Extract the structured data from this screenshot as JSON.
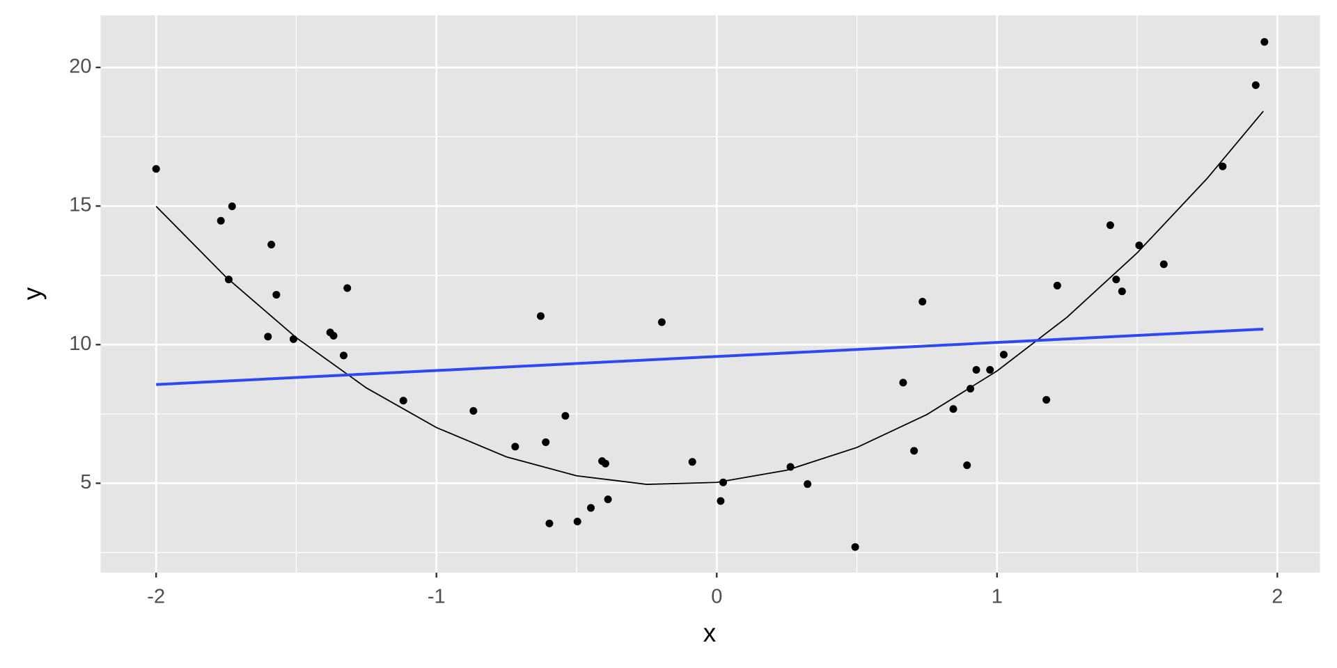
{
  "chart_data": {
    "type": "scatter",
    "xlabel": "x",
    "ylabel": "y",
    "xlim": [
      -2.198,
      2.152
    ],
    "ylim": [
      1.774,
      21.88
    ],
    "xticks": [
      -2,
      -1,
      0,
      1,
      2
    ],
    "yticks": [
      5,
      10,
      15,
      20
    ],
    "xminor": [
      -1.5,
      -0.5,
      0.5,
      1.5
    ],
    "yminor": [
      2.5,
      7.5,
      12.5,
      17.5
    ],
    "grid": true,
    "panel_color": "#e5e5e5",
    "series": [
      {
        "style": "points",
        "color": "#000000",
        "x": [
          -2.0,
          -1.769,
          -1.729,
          -1.741,
          -1.589,
          -1.571,
          -1.601,
          -1.51,
          -1.379,
          -1.367,
          -1.318,
          -1.331,
          -1.118,
          -0.868,
          -0.719,
          -0.628,
          -0.61,
          -0.597,
          -0.54,
          -0.497,
          -0.449,
          -0.409,
          -0.397,
          -0.388,
          -0.196,
          -0.087,
          0.014,
          0.023,
          0.263,
          0.324,
          0.494,
          0.665,
          0.704,
          0.734,
          0.844,
          0.893,
          0.905,
          0.926,
          0.975,
          1.024,
          1.176,
          1.215,
          1.404,
          1.425,
          1.446,
          1.507,
          1.595,
          1.805,
          1.923,
          1.954
        ],
        "y": [
          16.34,
          14.47,
          14.99,
          12.35,
          13.61,
          11.8,
          10.29,
          10.2,
          10.44,
          10.32,
          12.04,
          9.61,
          7.98,
          7.61,
          6.32,
          11.03,
          6.48,
          3.55,
          7.43,
          3.62,
          4.11,
          5.8,
          5.71,
          4.42,
          10.81,
          5.77,
          4.36,
          5.03,
          5.59,
          4.97,
          2.7,
          8.63,
          6.17,
          11.55,
          7.68,
          5.65,
          8.41,
          9.09,
          9.09,
          9.64,
          8.01,
          12.13,
          14.31,
          12.35,
          11.92,
          13.58,
          12.9,
          16.43,
          19.36,
          20.92
        ]
      },
      {
        "style": "line",
        "color": "#000000",
        "width": 1.8,
        "x": [
          -2,
          -1.75,
          -1.5,
          -1.25,
          -1,
          -0.75,
          -0.5,
          -0.25,
          0,
          0.25,
          0.5,
          0.75,
          1,
          1.25,
          1.5,
          1.75,
          1.95
        ],
        "y": [
          14.99,
          12.43,
          10.25,
          8.44,
          7.01,
          5.95,
          5.27,
          4.96,
          5.03,
          5.47,
          6.29,
          7.48,
          9.05,
          10.99,
          13.31,
          16.0,
          18.42
        ]
      },
      {
        "style": "line",
        "color": "#3048f0",
        "width": 4,
        "x": [
          -2,
          1.95
        ],
        "y": [
          8.56,
          10.56
        ]
      }
    ]
  }
}
